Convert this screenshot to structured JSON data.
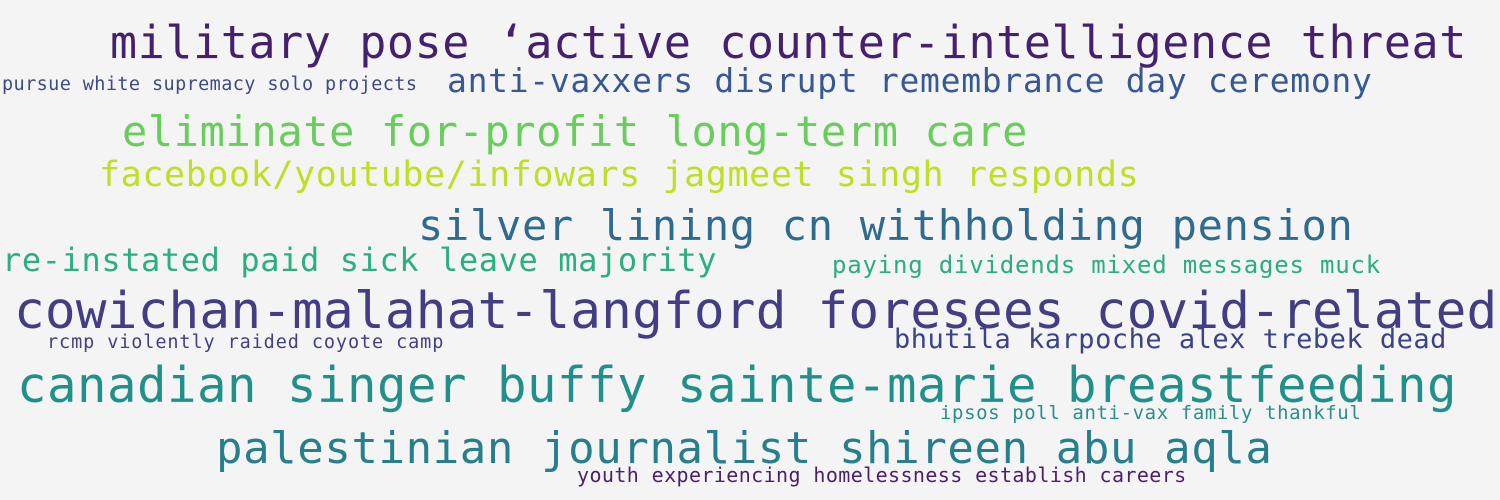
{
  "colors": {
    "background": "#f4f4f4"
  },
  "words": [
    {
      "text": "military pose ‘active counter-intelligence threat",
      "color": "#44206e"
    },
    {
      "text": "pursue white supremacy solo projects",
      "color": "#3b4b8a"
    },
    {
      "text": "anti-vaxxers disrupt remembrance day ceremony",
      "color": "#375893"
    },
    {
      "text": "eliminate for-profit long-term care",
      "color": "#68cd5a"
    },
    {
      "text": "facebook/youtube/infowars jagmeet singh responds",
      "color": "#bde022"
    },
    {
      "text": "silver lining cn withholding pension",
      "color": "#2f6b8e"
    },
    {
      "text": "re-instated paid sick leave majority",
      "color": "#2aaf7e"
    },
    {
      "text": "paying dividends mixed messages muck",
      "color": "#2aad7f"
    },
    {
      "text": "cowichan-malahat-langford foresees covid-related",
      "color": "#433d84"
    },
    {
      "text": "rcmp violently raided coyote camp",
      "color": "#404186"
    },
    {
      "text": "bhutila karpoche alex trebek dead",
      "color": "#3a4387"
    },
    {
      "text": "canadian singer buffy sainte-marie breastfeeding",
      "color": "#22908a"
    },
    {
      "text": "ipsos poll anti-vax family thankful",
      "color": "#2a8e8c"
    },
    {
      "text": "palestinian journalist shireen abu aqla",
      "color": "#277f8e"
    },
    {
      "text": "youth experiencing homelessness establish careers",
      "color": "#4a1f6d"
    }
  ]
}
